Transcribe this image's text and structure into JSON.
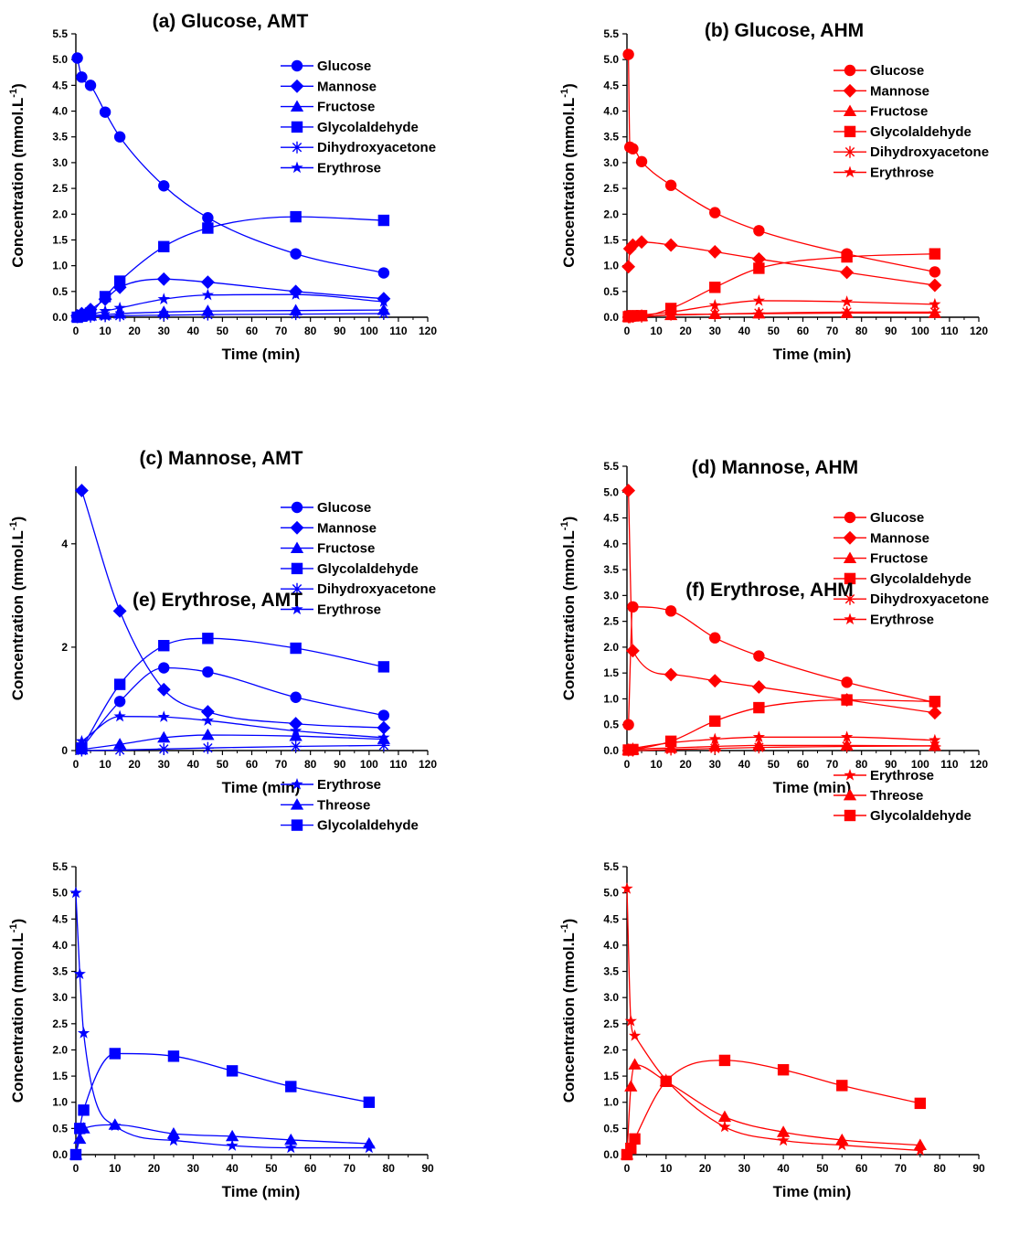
{
  "chart_data": [
    {
      "type": "line",
      "title": "(a) Glucose, AMT",
      "color": "#0000FF",
      "xlabel": "Time (min)",
      "ylabel_main": "Concentration (mmol.L",
      "ylabel_sup": "-1",
      "ylabel_close": ")",
      "xlim": [
        0,
        120
      ],
      "ylim": [
        0,
        5.5
      ],
      "xticks": [
        "0",
        "10",
        "20",
        "30",
        "40",
        "50",
        "60",
        "70",
        "80",
        "90",
        "100",
        "110",
        "120"
      ],
      "yticks": [
        "0.0",
        "0.5",
        "1.0",
        "1.5",
        "2.0",
        "2.5",
        "3.0",
        "3.5",
        "4.0",
        "4.5",
        "5.0",
        "5.5"
      ],
      "legend_position": "top-right",
      "series": [
        {
          "name": "Glucose",
          "marker": "circle",
          "x": [
            0.5,
            2,
            5,
            10,
            15,
            30,
            45,
            75,
            105
          ],
          "y": [
            5.03,
            4.66,
            4.5,
            3.98,
            3.5,
            2.55,
            1.93,
            1.23,
            0.86
          ]
        },
        {
          "name": "Mannose",
          "marker": "diamond",
          "x": [
            0.5,
            2,
            5,
            10,
            15,
            30,
            45,
            75,
            105
          ],
          "y": [
            0.03,
            0.07,
            0.15,
            0.35,
            0.58,
            0.74,
            0.68,
            0.5,
            0.36
          ]
        },
        {
          "name": "Fructose",
          "marker": "triangle",
          "x": [
            0.5,
            2,
            5,
            10,
            15,
            30,
            45,
            75,
            105
          ],
          "y": [
            0.01,
            0.02,
            0.03,
            0.05,
            0.07,
            0.1,
            0.12,
            0.13,
            0.14
          ]
        },
        {
          "name": "Glycolaldehyde",
          "marker": "square",
          "x": [
            0.5,
            2,
            5,
            10,
            15,
            30,
            45,
            75,
            105
          ],
          "y": [
            0,
            0.02,
            0.08,
            0.4,
            0.7,
            1.37,
            1.73,
            1.95,
            1.88
          ]
        },
        {
          "name": "Dihydroxyacetone",
          "marker": "asterisk",
          "x": [
            0.5,
            2,
            5,
            10,
            15,
            30,
            45,
            75,
            105
          ],
          "y": [
            0,
            0.01,
            0.01,
            0.02,
            0.03,
            0.04,
            0.05,
            0.06,
            0.07
          ]
        },
        {
          "name": "Erythrose",
          "marker": "star",
          "x": [
            0.5,
            2,
            5,
            10,
            15,
            30,
            45,
            75,
            105
          ],
          "y": [
            0,
            0.02,
            0.05,
            0.12,
            0.18,
            0.35,
            0.43,
            0.44,
            0.3
          ]
        }
      ]
    },
    {
      "type": "line",
      "title": "(b) Glucose, AHM",
      "color": "#FF0000",
      "xlabel": "Time (min)",
      "ylabel_main": "Concentration (mmol.L",
      "ylabel_sup": "-1",
      "ylabel_close": ")",
      "xlim": [
        0,
        120
      ],
      "ylim": [
        0,
        5.5
      ],
      "xticks": [
        "0",
        "10",
        "20",
        "30",
        "40",
        "50",
        "60",
        "70",
        "80",
        "90",
        "100",
        "110",
        "120"
      ],
      "yticks": [
        "0.0",
        "0.5",
        "1.0",
        "1.5",
        "2.0",
        "2.5",
        "3.0",
        "3.5",
        "4.0",
        "4.5",
        "5.0",
        "5.5"
      ],
      "legend_position": "top-right",
      "series": [
        {
          "name": "Glucose",
          "marker": "circle",
          "x": [
            0.5,
            1,
            2,
            5,
            15,
            30,
            45,
            75,
            105
          ],
          "y": [
            5.1,
            3.3,
            3.27,
            3.02,
            2.56,
            2.03,
            1.68,
            1.23,
            0.88
          ]
        },
        {
          "name": "Mannose",
          "marker": "diamond",
          "x": [
            0.5,
            1,
            2,
            5,
            15,
            30,
            45,
            75,
            105
          ],
          "y": [
            0.98,
            1.33,
            1.4,
            1.46,
            1.4,
            1.27,
            1.13,
            0.87,
            0.62
          ]
        },
        {
          "name": "Fructose",
          "marker": "triangle",
          "x": [
            0.5,
            1,
            2,
            5,
            15,
            30,
            45,
            75,
            105
          ],
          "y": [
            0.01,
            0.01,
            0.01,
            0.02,
            0.04,
            0.06,
            0.07,
            0.08,
            0.08
          ]
        },
        {
          "name": "Glycolaldehyde",
          "marker": "square",
          "x": [
            0.5,
            1,
            2,
            5,
            15,
            30,
            45,
            75,
            105
          ],
          "y": [
            0.01,
            0.02,
            0.03,
            0.03,
            0.17,
            0.58,
            0.95,
            1.17,
            1.23
          ]
        },
        {
          "name": "Dihydroxyacetone",
          "marker": "asterisk",
          "x": [
            0.5,
            1,
            2,
            5,
            15,
            30,
            45,
            75,
            105
          ],
          "y": [
            0,
            0,
            0.01,
            0.01,
            0.05,
            0.06,
            0.08,
            0.1,
            0.1
          ]
        },
        {
          "name": "Erythrose",
          "marker": "star",
          "x": [
            0.5,
            1,
            2,
            5,
            15,
            30,
            45,
            75,
            105
          ],
          "y": [
            0,
            0.01,
            0.02,
            0.04,
            0.1,
            0.23,
            0.32,
            0.3,
            0.25
          ]
        }
      ]
    },
    {
      "type": "line",
      "title": "(c) Mannose, AMT",
      "color": "#0000FF",
      "xlabel": "Time (min)",
      "ylabel_main": "Concentration (mmol.L",
      "ylabel_sup": "-1",
      "ylabel_close": ")",
      "xlim": [
        0,
        120
      ],
      "ylim": [
        0,
        5.5
      ],
      "xticks": [
        "0",
        "10",
        "20",
        "30",
        "40",
        "50",
        "60",
        "70",
        "80",
        "90",
        "100",
        "110",
        "120"
      ],
      "yticks": [
        "0",
        "2",
        "4"
      ],
      "legend_position": "top-right",
      "series": [
        {
          "name": "Glucose",
          "marker": "circle",
          "x": [
            2,
            15,
            30,
            45,
            75,
            105
          ],
          "y": [
            0.05,
            0.95,
            1.6,
            1.52,
            1.03,
            0.68
          ]
        },
        {
          "name": "Mannose",
          "marker": "diamond",
          "x": [
            2,
            15,
            30,
            45,
            75,
            105
          ],
          "y": [
            5.03,
            2.7,
            1.18,
            0.75,
            0.52,
            0.44
          ]
        },
        {
          "name": "Fructose",
          "marker": "triangle",
          "x": [
            2,
            15,
            30,
            45,
            75,
            105
          ],
          "y": [
            0.02,
            0.12,
            0.25,
            0.3,
            0.28,
            0.22
          ]
        },
        {
          "name": "Glycolaldehyde",
          "marker": "square",
          "x": [
            2,
            15,
            30,
            45,
            75,
            105
          ],
          "y": [
            0.05,
            1.28,
            2.03,
            2.17,
            1.98,
            1.62
          ]
        },
        {
          "name": "Dihydroxyacetone",
          "marker": "asterisk",
          "x": [
            2,
            15,
            30,
            45,
            75,
            105
          ],
          "y": [
            0,
            0.01,
            0.03,
            0.05,
            0.08,
            0.1
          ]
        },
        {
          "name": "Erythrose",
          "marker": "star",
          "x": [
            2,
            15,
            30,
            45,
            75,
            105
          ],
          "y": [
            0.18,
            0.66,
            0.65,
            0.58,
            0.38,
            0.25
          ]
        }
      ]
    },
    {
      "type": "line",
      "title": "(d) Mannose, AHM",
      "color": "#FF0000",
      "xlabel": "Time (min)",
      "ylabel_main": "Concentration (mmol.L",
      "ylabel_sup": "-1",
      "ylabel_close": ")",
      "xlim": [
        0,
        120
      ],
      "ylim": [
        0,
        5.5
      ],
      "xticks": [
        "0",
        "10",
        "20",
        "30",
        "40",
        "50",
        "60",
        "70",
        "80",
        "90",
        "100",
        "110",
        "120"
      ],
      "yticks": [
        "0.0",
        "0.5",
        "1.0",
        "1.5",
        "2.0",
        "2.5",
        "3.0",
        "3.5",
        "4.0",
        "4.5",
        "5.0",
        "5.5"
      ],
      "legend_position": "top-right",
      "series": [
        {
          "name": "Glucose",
          "marker": "circle",
          "x": [
            0.5,
            2,
            15,
            30,
            45,
            75,
            105
          ],
          "y": [
            0.5,
            2.78,
            2.7,
            2.18,
            1.83,
            1.32,
            0.93
          ]
        },
        {
          "name": "Mannose",
          "marker": "diamond",
          "x": [
            0.5,
            2,
            15,
            30,
            45,
            75,
            105
          ],
          "y": [
            5.03,
            1.93,
            1.47,
            1.35,
            1.23,
            0.98,
            0.73
          ]
        },
        {
          "name": "Fructose",
          "marker": "triangle",
          "x": [
            0.5,
            2,
            15,
            30,
            45,
            75,
            105
          ],
          "y": [
            0.01,
            0.02,
            0.05,
            0.08,
            0.1,
            0.1,
            0.09
          ]
        },
        {
          "name": "Glycolaldehyde",
          "marker": "square",
          "x": [
            0.5,
            2,
            15,
            30,
            45,
            75,
            105
          ],
          "y": [
            0.01,
            0.02,
            0.18,
            0.57,
            0.83,
            0.98,
            0.95
          ]
        },
        {
          "name": "Dihydroxyacetone",
          "marker": "asterisk",
          "x": [
            0.5,
            2,
            15,
            30,
            45,
            75,
            105
          ],
          "y": [
            0,
            0,
            0.02,
            0.04,
            0.06,
            0.08,
            0.09
          ]
        },
        {
          "name": "Erythrose",
          "marker": "star",
          "x": [
            0.5,
            2,
            15,
            30,
            45,
            75,
            105
          ],
          "y": [
            0.02,
            0.04,
            0.15,
            0.22,
            0.26,
            0.26,
            0.2
          ]
        }
      ]
    },
    {
      "type": "line",
      "title": "(e) Erythrose, AMT",
      "color": "#0000FF",
      "xlabel": "Time (min)",
      "ylabel_main": "Concentration (mmol.L",
      "ylabel_sup": "-1",
      "ylabel_close": ")",
      "xlim": [
        0,
        90
      ],
      "ylim": [
        0,
        5.5
      ],
      "xticks": [
        "0",
        "10",
        "20",
        "30",
        "40",
        "50",
        "60",
        "70",
        "80",
        "90"
      ],
      "yticks": [
        "0.0",
        "0.5",
        "1.0",
        "1.5",
        "2.0",
        "2.5",
        "3.0",
        "3.5",
        "4.0",
        "4.5",
        "5.0",
        "5.5"
      ],
      "legend_position": "top-right",
      "series": [
        {
          "name": "Erythrose",
          "marker": "star",
          "x": [
            0,
            1,
            2,
            10,
            25,
            40,
            55,
            75
          ],
          "y": [
            5.0,
            3.45,
            2.32,
            0.55,
            0.27,
            0.17,
            0.13,
            0.13
          ]
        },
        {
          "name": "Threose",
          "marker": "triangle",
          "x": [
            0,
            1,
            2,
            10,
            25,
            40,
            55,
            75
          ],
          "y": [
            0,
            0.3,
            0.5,
            0.57,
            0.4,
            0.35,
            0.28,
            0.21
          ]
        },
        {
          "name": "Glycolaldehyde",
          "marker": "square",
          "x": [
            0,
            1,
            2,
            10,
            25,
            40,
            55,
            75
          ],
          "y": [
            0,
            0.5,
            0.85,
            1.93,
            1.88,
            1.6,
            1.3,
            1.0
          ]
        }
      ]
    },
    {
      "type": "line",
      "title": "(f) Erythrose, AHM",
      "color": "#FF0000",
      "xlabel": "Time (min)",
      "ylabel_main": "Concentration (mmol.L",
      "ylabel_sup": "-1",
      "ylabel_close": ")",
      "xlim": [
        0,
        90
      ],
      "ylim": [
        0,
        5.5
      ],
      "xticks": [
        "0",
        "10",
        "20",
        "30",
        "40",
        "50",
        "60",
        "70",
        "80",
        "90"
      ],
      "yticks": [
        "0.0",
        "0.5",
        "1.0",
        "1.5",
        "2.0",
        "2.5",
        "3.0",
        "3.5",
        "4.0",
        "4.5",
        "5.0",
        "5.5"
      ],
      "legend_position": "top-right",
      "series": [
        {
          "name": "Erythrose",
          "marker": "star",
          "x": [
            0,
            1,
            2,
            10,
            25,
            40,
            55,
            75
          ],
          "y": [
            5.08,
            2.55,
            2.27,
            1.43,
            0.53,
            0.27,
            0.18,
            0.08
          ]
        },
        {
          "name": "Threose",
          "marker": "triangle",
          "x": [
            0,
            1,
            2,
            10,
            25,
            40,
            55,
            75
          ],
          "y": [
            0,
            1.3,
            1.72,
            1.4,
            0.72,
            0.43,
            0.28,
            0.18
          ]
        },
        {
          "name": "Glycolaldehyde",
          "marker": "square",
          "x": [
            0,
            1,
            2,
            10,
            25,
            40,
            55,
            75
          ],
          "y": [
            0,
            0.12,
            0.3,
            1.4,
            1.8,
            1.62,
            1.32,
            0.98
          ]
        }
      ]
    }
  ]
}
